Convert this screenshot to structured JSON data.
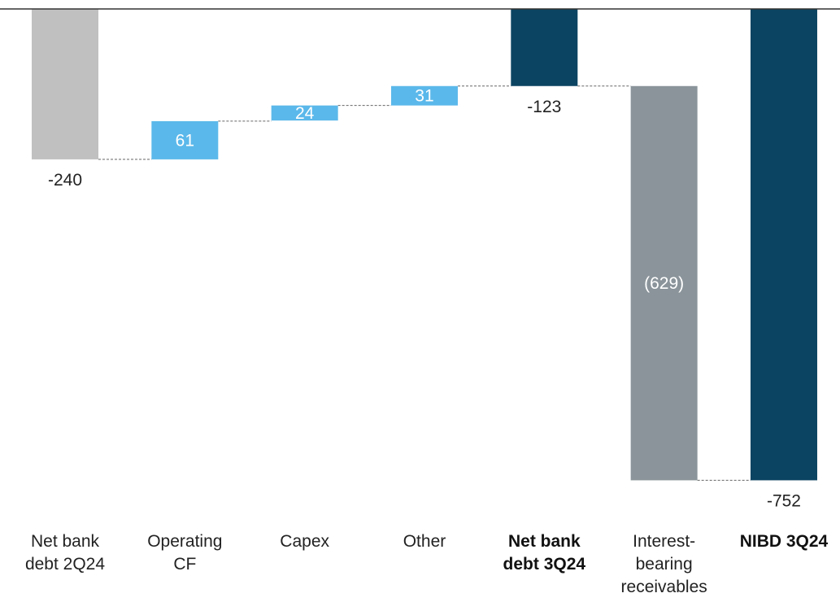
{
  "chart_data": {
    "type": "bar",
    "subtype": "waterfall",
    "title": "",
    "xlabel": "",
    "ylabel": "",
    "grid": false,
    "colors": {
      "start": "#c0c0c0",
      "increase": "#5bb8ea",
      "subtotal": "#0b4462",
      "decrease": "#8a949a",
      "connector": "#666666",
      "axis": "#333333"
    },
    "categories": [
      {
        "lines": [
          "Net bank",
          "debt 2Q24"
        ],
        "bold": false
      },
      {
        "lines": [
          "Operating",
          "CF"
        ],
        "bold": false
      },
      {
        "lines": [
          "Capex"
        ],
        "bold": false
      },
      {
        "lines": [
          "Other"
        ],
        "bold": false
      },
      {
        "lines": [
          "Net bank",
          "debt 3Q24"
        ],
        "bold": true
      },
      {
        "lines": [
          "Interest-",
          "bearing",
          "receivables"
        ],
        "bold": false
      },
      {
        "lines": [
          "NIBD 3Q24"
        ],
        "bold": true
      }
    ],
    "bars": [
      {
        "kind": "start",
        "from": 0,
        "to": -240,
        "label": "-240",
        "label_position": "below"
      },
      {
        "kind": "increase",
        "from": -240,
        "to": -179,
        "label": "61",
        "label_position": "inside"
      },
      {
        "kind": "increase",
        "from": -178,
        "to": -154,
        "label": "24",
        "label_position": "inside"
      },
      {
        "kind": "increase",
        "from": -154,
        "to": -123,
        "label": "31",
        "label_position": "inside"
      },
      {
        "kind": "subtotal",
        "from": 0,
        "to": -123,
        "label": "-123",
        "label_position": "below"
      },
      {
        "kind": "decrease",
        "from": -123,
        "to": -752,
        "label": "(629)",
        "label_position": "inside"
      },
      {
        "kind": "subtotal",
        "from": 0,
        "to": -752,
        "label": "-752",
        "label_position": "below"
      }
    ]
  }
}
